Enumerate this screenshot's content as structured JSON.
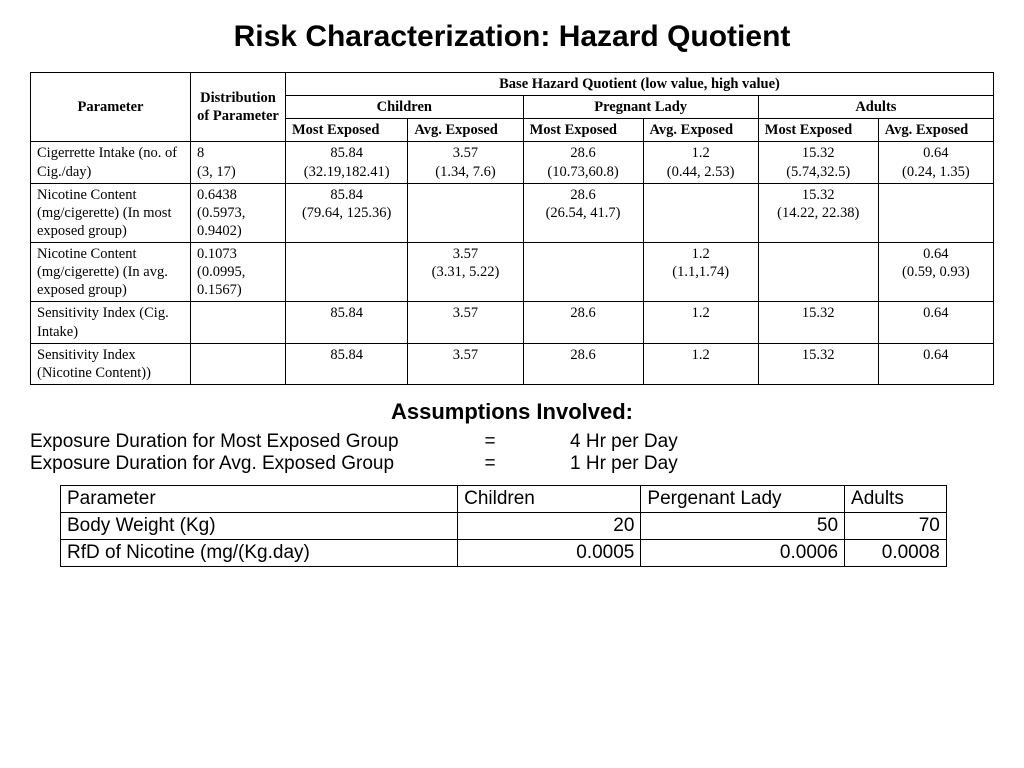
{
  "title": "Risk Characterization: Hazard Quotient",
  "main_table": {
    "headers": {
      "parameter": "Parameter",
      "distribution": "Distribution of Parameter",
      "base_hq": "Base Hazard Quotient (low value, high value)",
      "groups": {
        "children": "Children",
        "pregnant": "Pregnant Lady",
        "adults": "Adults"
      },
      "sub": {
        "most": "Most Exposed",
        "avg": "Avg. Exposed",
        "most2": "Most Exposed",
        "avg2": "Avg. Exposed"
      }
    },
    "rows": [
      {
        "param": "Cigerrette Intake (no. of Cig./day)",
        "dist": "8 (3, 17)",
        "c_most": "85.84 (32.19,182.41)",
        "c_avg": "3.57 (1.34, 7.6)",
        "p_most": "28.6 (10.73,60.8)",
        "p_avg": "1.2 (0.44, 2.53)",
        "a_most": "15.32 (5.74,32.5)",
        "a_avg": "0.64 (0.24, 1.35)"
      },
      {
        "param": "Nicotine Content (mg/cigerette) (In most exposed group)",
        "dist": "0.6438 (0.5973, 0.9402)",
        "c_most": "85.84 (79.64, 125.36)",
        "c_avg": "",
        "p_most": "28.6 (26.54, 41.7)",
        "p_avg": "",
        "a_most": "15.32 (14.22, 22.38)",
        "a_avg": ""
      },
      {
        "param": "Nicotine Content (mg/cigerette) (In avg. exposed group)",
        "dist": "0.1073 (0.0995, 0.1567)",
        "c_most": "",
        "c_avg": "3.57 (3.31, 5.22)",
        "p_most": "",
        "p_avg": "1.2 (1.1,1.74)",
        "a_most": "",
        "a_avg": "0.64 (0.59, 0.93)"
      },
      {
        "param": "Sensitivity Index (Cig. Intake)",
        "dist": "",
        "c_most": "85.84",
        "c_avg": "3.57",
        "p_most": "28.6",
        "p_avg": "1.2",
        "a_most": "15.32",
        "a_avg": "0.64"
      },
      {
        "param": "Sensitivity Index (Nicotine Content))",
        "dist": "",
        "c_most": "85.84",
        "c_avg": "3.57",
        "p_most": "28.6",
        "p_avg": "1.2",
        "a_most": "15.32",
        "a_avg": "0.64"
      }
    ]
  },
  "assumptions": {
    "heading": "Assumptions Involved:",
    "lines": [
      {
        "label": "Exposure Duration for Most Exposed Group",
        "eq": "=",
        "val": "4 Hr per Day"
      },
      {
        "label": "Exposure Duration for Avg. Exposed Group",
        "eq": "=",
        "val": "1 Hr per Day"
      }
    ]
  },
  "bottom_table": {
    "headers": {
      "param": "Parameter",
      "children": "Children",
      "pregnant": "Pergenant Lady",
      "adults": "Adults"
    },
    "col_widths": {
      "param": "390px",
      "children": "180px",
      "pregnant": "200px",
      "adults": "100px"
    },
    "rows": [
      {
        "param": "Body Weight (Kg)",
        "children": "20",
        "pregnant": "50",
        "adults": "70"
      },
      {
        "param": "RfD of Nicotine (mg/(Kg.day)",
        "children": "0.0005",
        "pregnant": "0.0006",
        "adults": "0.0008"
      }
    ]
  },
  "colors": {
    "text": "#000000",
    "background": "#ffffff",
    "border": "#000000"
  }
}
